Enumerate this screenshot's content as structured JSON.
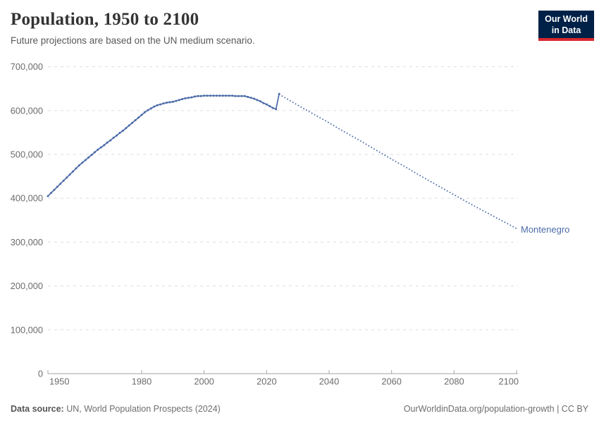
{
  "header": {
    "title": "Population, 1950 to 2100",
    "subtitle": "Future projections are based on the UN medium scenario.",
    "logo_line1": "Our World",
    "logo_line2": "in Data"
  },
  "footer": {
    "source_label": "Data source:",
    "source_text": " UN, World Population Prospects (2024)",
    "credit": "OurWorldinData.org/population-growth | CC BY"
  },
  "colors": {
    "line": "#4c6ba8",
    "gridline": "#dddddd",
    "axis": "#a3a3a3",
    "tick_label": "#6b6b6b",
    "logo_bg": "#002147",
    "logo_bar": "#d8282f"
  },
  "chart_data": {
    "type": "line",
    "title": "Population, 1950 to 2100",
    "subtitle": "Future projections are based on the UN medium scenario.",
    "entity_label": "Montenegro",
    "xlabel": "",
    "ylabel": "",
    "x_range": [
      1950,
      2100
    ],
    "y_range": [
      0,
      700000
    ],
    "grid": "dashed-horizontal",
    "legend_position": "end-of-line",
    "x_ticks": [
      {
        "v": 1950,
        "label": "1950"
      },
      {
        "v": 1980,
        "label": "1980"
      },
      {
        "v": 2000,
        "label": "2000"
      },
      {
        "v": 2020,
        "label": "2020"
      },
      {
        "v": 2040,
        "label": "2040"
      },
      {
        "v": 2060,
        "label": "2060"
      },
      {
        "v": 2080,
        "label": "2080"
      },
      {
        "v": 2100,
        "label": "2100"
      }
    ],
    "y_ticks": [
      {
        "v": 0,
        "label": "0"
      },
      {
        "v": 100000,
        "label": "100,000"
      },
      {
        "v": 200000,
        "label": "200,000"
      },
      {
        "v": 300000,
        "label": "300,000"
      },
      {
        "v": 400000,
        "label": "400,000"
      },
      {
        "v": 500000,
        "label": "500,000"
      },
      {
        "v": 600000,
        "label": "600,000"
      },
      {
        "v": 700000,
        "label": "700,000"
      }
    ],
    "series": [
      {
        "name": "estimates",
        "style": "solid-with-markers",
        "points": [
          [
            1950,
            405000
          ],
          [
            1951,
            412000
          ],
          [
            1952,
            419000
          ],
          [
            1953,
            426000
          ],
          [
            1954,
            433000
          ],
          [
            1955,
            440000
          ],
          [
            1956,
            447000
          ],
          [
            1957,
            454000
          ],
          [
            1958,
            461000
          ],
          [
            1959,
            468000
          ],
          [
            1960,
            475000
          ],
          [
            1961,
            481000
          ],
          [
            1962,
            487000
          ],
          [
            1963,
            493000
          ],
          [
            1964,
            499000
          ],
          [
            1965,
            505000
          ],
          [
            1966,
            511000
          ],
          [
            1967,
            516000
          ],
          [
            1968,
            521000
          ],
          [
            1969,
            527000
          ],
          [
            1970,
            532000
          ],
          [
            1971,
            538000
          ],
          [
            1972,
            543000
          ],
          [
            1973,
            549000
          ],
          [
            1974,
            554000
          ],
          [
            1975,
            560000
          ],
          [
            1976,
            566000
          ],
          [
            1977,
            572000
          ],
          [
            1978,
            578000
          ],
          [
            1979,
            584000
          ],
          [
            1980,
            590000
          ],
          [
            1981,
            596000
          ],
          [
            1982,
            601000
          ],
          [
            1983,
            605000
          ],
          [
            1984,
            609000
          ],
          [
            1985,
            612000
          ],
          [
            1986,
            614000
          ],
          [
            1987,
            616000
          ],
          [
            1988,
            618000
          ],
          [
            1989,
            619000
          ],
          [
            1990,
            620000
          ],
          [
            1991,
            622000
          ],
          [
            1992,
            624000
          ],
          [
            1993,
            626000
          ],
          [
            1994,
            628000
          ],
          [
            1995,
            629000
          ],
          [
            1996,
            630000
          ],
          [
            1997,
            632000
          ],
          [
            1998,
            633000
          ],
          [
            1999,
            633000
          ],
          [
            2000,
            634000
          ],
          [
            2001,
            634000
          ],
          [
            2002,
            634000
          ],
          [
            2003,
            634000
          ],
          [
            2004,
            634000
          ],
          [
            2005,
            634000
          ],
          [
            2006,
            634000
          ],
          [
            2007,
            634000
          ],
          [
            2008,
            634000
          ],
          [
            2009,
            634000
          ],
          [
            2010,
            633000
          ],
          [
            2011,
            633000
          ],
          [
            2012,
            633000
          ],
          [
            2013,
            633000
          ],
          [
            2014,
            631000
          ],
          [
            2015,
            629000
          ],
          [
            2016,
            627000
          ],
          [
            2017,
            624000
          ],
          [
            2018,
            621000
          ],
          [
            2019,
            617000
          ],
          [
            2020,
            614000
          ],
          [
            2021,
            610000
          ],
          [
            2022,
            606000
          ],
          [
            2023,
            603000
          ],
          [
            2024,
            638000
          ]
        ]
      },
      {
        "name": "projection (UN medium scenario)",
        "style": "dotted",
        "points": [
          [
            2024,
            638000
          ],
          [
            2025,
            633000
          ],
          [
            2030,
            612000
          ],
          [
            2035,
            592000
          ],
          [
            2040,
            572000
          ],
          [
            2045,
            551000
          ],
          [
            2050,
            531000
          ],
          [
            2055,
            510000
          ],
          [
            2060,
            489000
          ],
          [
            2065,
            469000
          ],
          [
            2070,
            448000
          ],
          [
            2075,
            428000
          ],
          [
            2080,
            408000
          ],
          [
            2085,
            388000
          ],
          [
            2090,
            369000
          ],
          [
            2095,
            350000
          ],
          [
            2100,
            331000
          ]
        ]
      }
    ]
  }
}
